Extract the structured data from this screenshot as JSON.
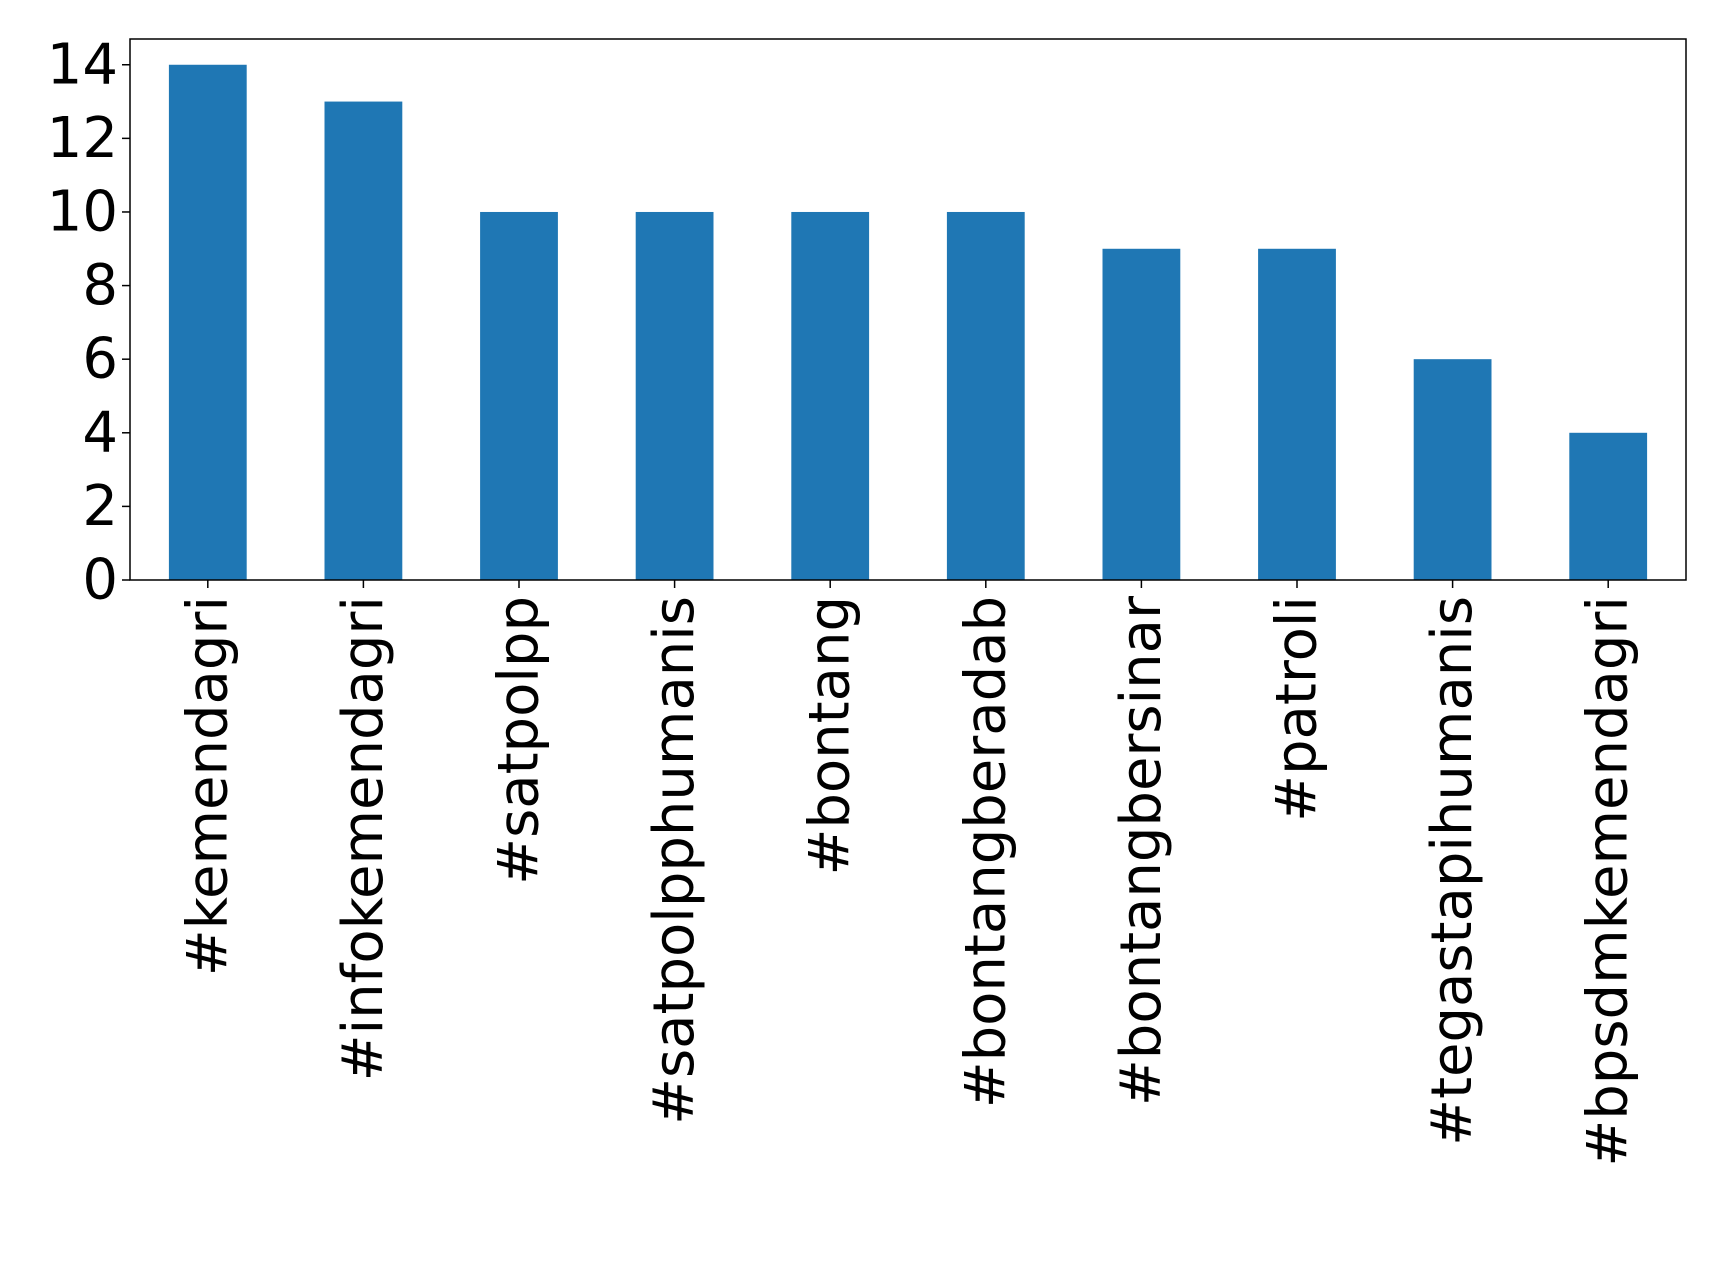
{
  "chart_data": {
    "type": "bar",
    "title": "",
    "xlabel": "",
    "ylabel": "",
    "categories": [
      "#kemendagri",
      "#infokemendagri",
      "#satpolpp",
      "#satpolpphumanis",
      "#bontang",
      "#bontangberadab",
      "#bontangbersinar",
      "#patroli",
      "#tegastapihumanis",
      "#bpsdmkemendagri"
    ],
    "values": [
      14,
      13,
      10,
      10,
      10,
      10,
      9,
      9,
      6,
      4
    ],
    "ylim": [
      0,
      14.7
    ],
    "yticks": [
      0,
      2,
      4,
      6,
      8,
      10,
      12,
      14
    ],
    "ytick_labels": [
      "0",
      "2",
      "4",
      "6",
      "8",
      "10",
      "12",
      "14"
    ],
    "bar_color": "#1f77b4",
    "grid": false,
    "legend": "none"
  }
}
